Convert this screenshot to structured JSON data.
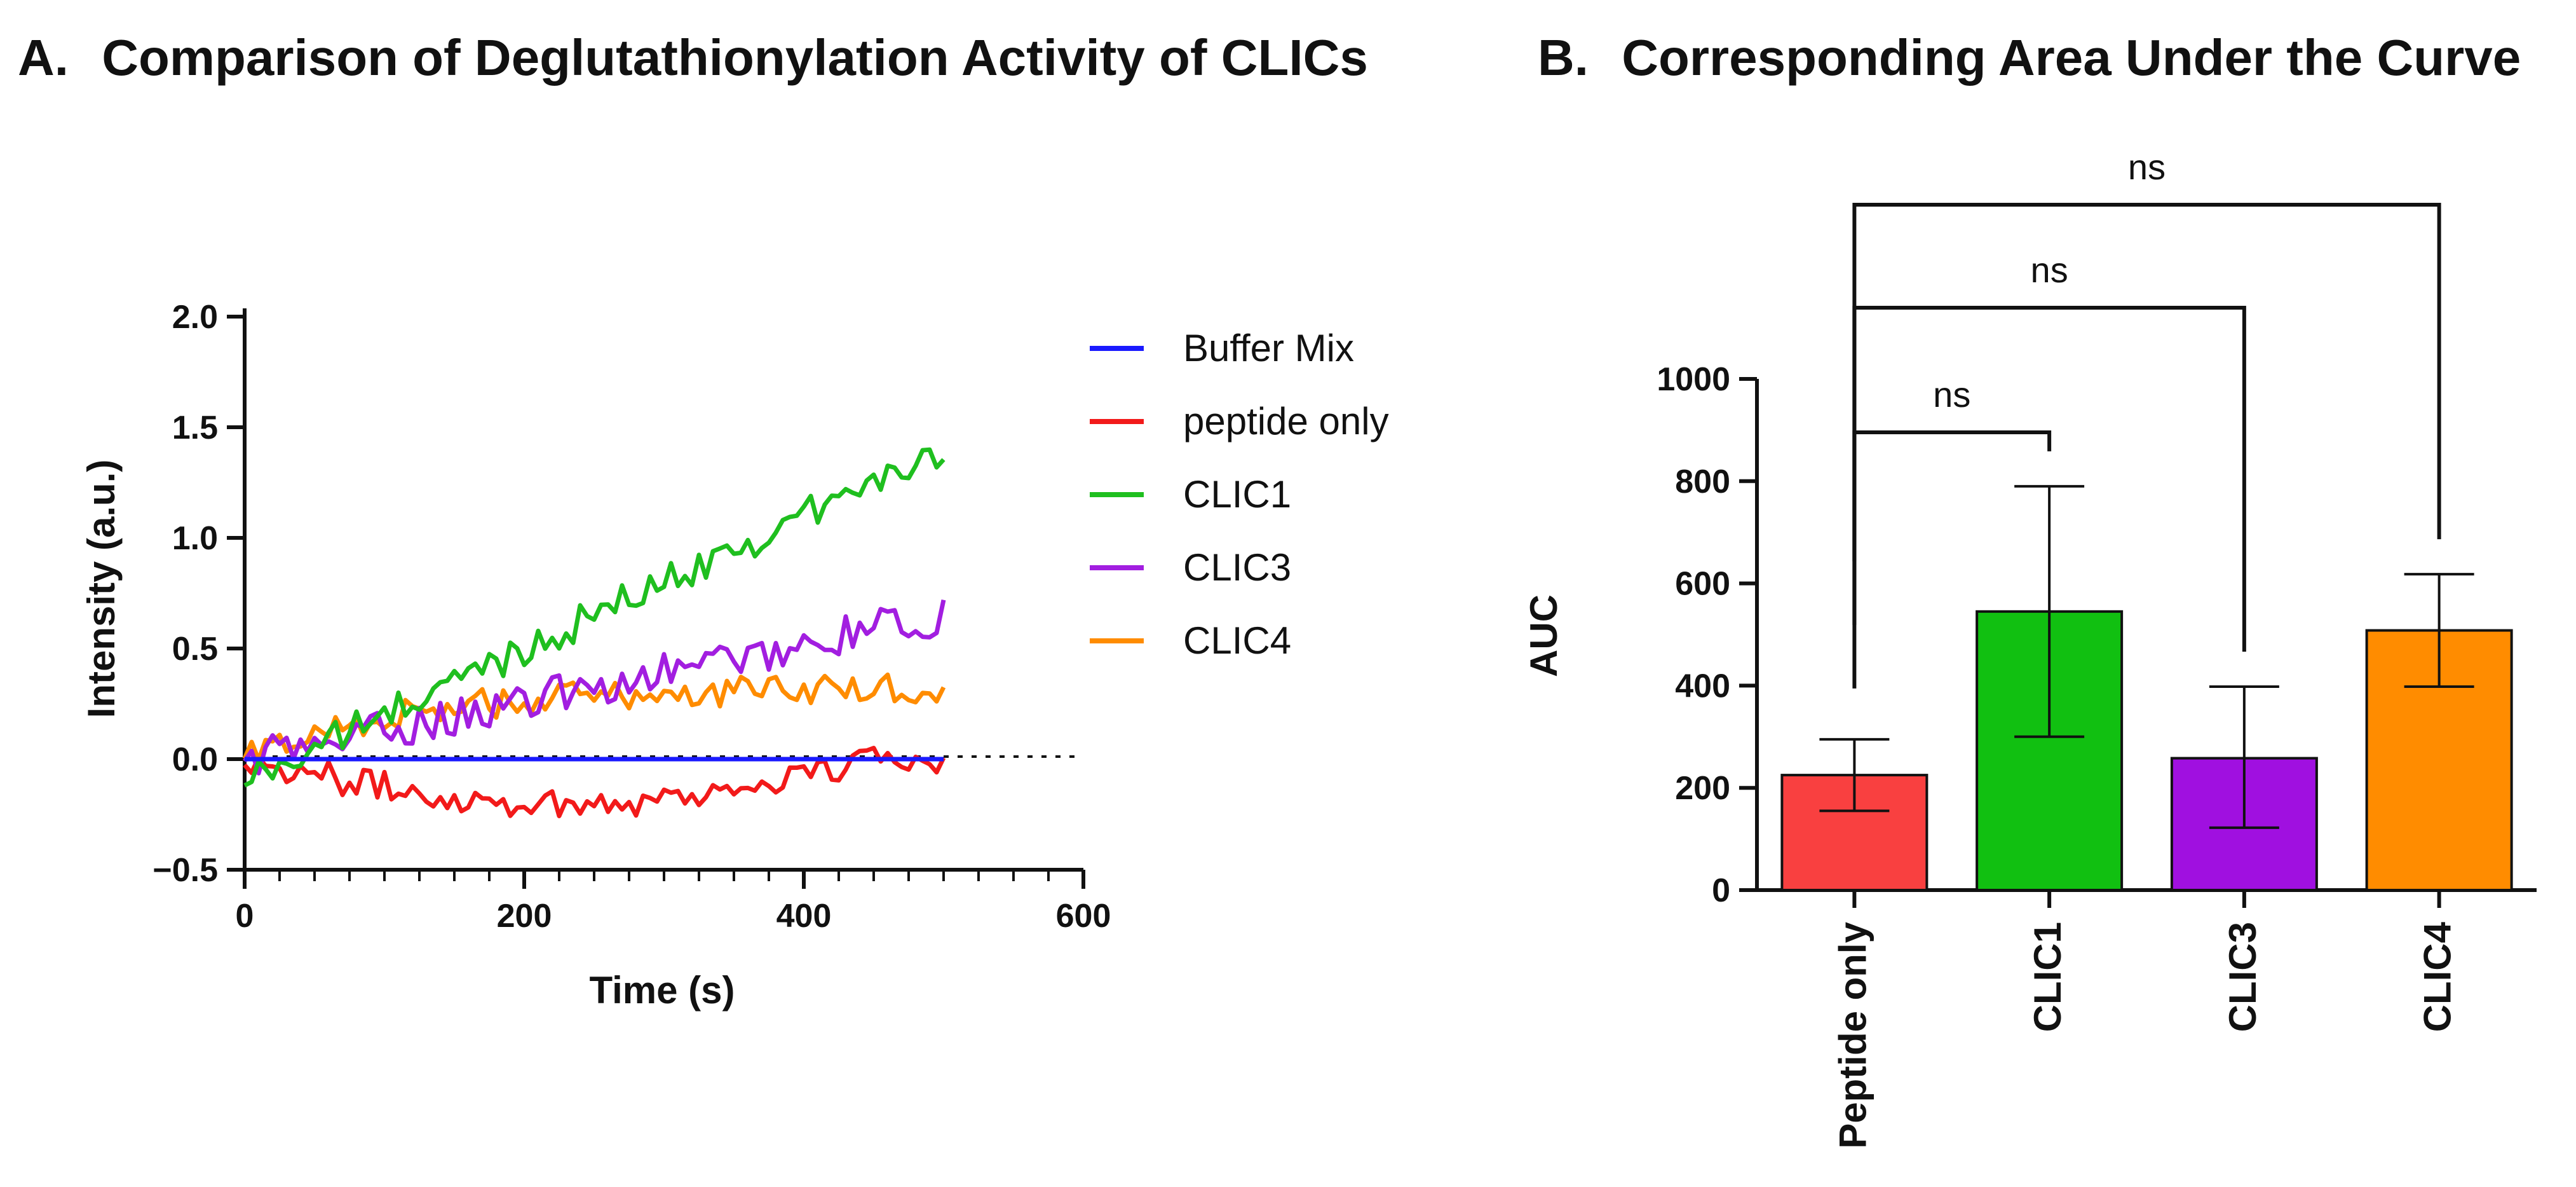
{
  "chart_data": [
    {
      "panel_label": "A.",
      "type": "line",
      "title": "Comparison of Deglutathionylation Activity of CLICs",
      "xlabel": "Time (s)",
      "ylabel": "Intensity (a.u.)",
      "xlim": [
        0,
        600
      ],
      "ylim": [
        -0.5,
        2.0
      ],
      "xticks": [
        "0",
        "200",
        "400",
        "600"
      ],
      "yticks": [
        "2.0",
        "1.5",
        "1.0",
        "0.5",
        "0.0",
        "−0.5"
      ],
      "legend_position": "right",
      "baseline_note": "dotted reference line at y = 0 continues past the data to x = 600",
      "x_step": 5,
      "series": [
        {
          "name": "Buffer Mix",
          "color": "#1a1aff",
          "trend": "flat",
          "start": 0.0,
          "end": 0.0,
          "noise": 0.0
        },
        {
          "name": "peptide only",
          "color": "#f21a1a",
          "trend": "dip-recover",
          "start": 0.0,
          "end": 0.0,
          "noise": 0.07
        },
        {
          "name": "CLIC1",
          "color": "#1fbf1f",
          "trend": "linear-rise",
          "start": -0.1,
          "end": 1.4,
          "noise": 0.08
        },
        {
          "name": "CLIC3",
          "color": "#a21ee0",
          "trend": "linear-rise",
          "start": 0.0,
          "end": 0.65,
          "noise": 0.09
        },
        {
          "name": "CLIC4",
          "color": "#ff8c00",
          "trend": "rise-plateau",
          "start": 0.0,
          "end": 0.32,
          "noise": 0.07
        }
      ]
    },
    {
      "panel_label": "B.",
      "type": "bar",
      "title": "Corresponding Area Under the Curve",
      "xlabel": "",
      "ylabel": "AUC",
      "ylim": [
        0,
        1000
      ],
      "yticks": [
        "1000",
        "800",
        "600",
        "400",
        "200",
        "0"
      ],
      "categories": [
        "Peptide only",
        "CLIC1",
        "CLIC3",
        "CLIC4"
      ],
      "values": [
        225,
        545,
        258,
        508
      ],
      "error_low": [
        155,
        300,
        122,
        398
      ],
      "error_high": [
        295,
        790,
        398,
        618
      ],
      "colors": [
        "#f94040",
        "#11c011",
        "#a010e0",
        "#ff8c00"
      ],
      "comparisons": [
        {
          "from": "Peptide only",
          "to": "CLIC1",
          "label": "ns"
        },
        {
          "from": "Peptide only",
          "to": "CLIC3",
          "label": "ns"
        },
        {
          "from": "Peptide only",
          "to": "CLIC4",
          "label": "ns"
        }
      ]
    }
  ]
}
